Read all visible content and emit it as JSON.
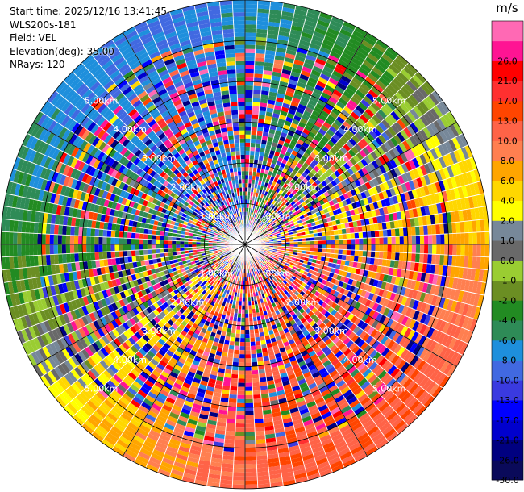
{
  "header": {
    "start_time": "Start time: 2025/12/16 13:41:45",
    "device": "WLS200s-181",
    "field": "Field: VEL",
    "elevation": "Elevation(deg): 35.00",
    "nrays": "NRays: 120"
  },
  "chart_data": {
    "type": "heatmap",
    "projection": "polar-ppi",
    "field": "VEL",
    "n_rays": 120,
    "elevation_deg": 35.0,
    "range_rings_km": [
      1.0,
      2.0,
      3.0,
      4.0,
      5.0
    ],
    "range_ring_labels": [
      "1.00km",
      "2.00km",
      "3.00km",
      "4.00km",
      "5.00km"
    ],
    "max_range_km": 6.0,
    "radial_spokes_deg": [
      0,
      30,
      60,
      90,
      120,
      150,
      180,
      210,
      240,
      270,
      300,
      330
    ],
    "colorbar": {
      "unit": "m/s",
      "position": "right",
      "levels": [
        -30.0,
        -26.0,
        -21.0,
        -17.0,
        -13.0,
        -10.0,
        -8.0,
        -6.0,
        -4.0,
        -2.0,
        -1.0,
        0.0,
        1.0,
        2.0,
        4.0,
        6.0,
        8.0,
        10.0,
        13.0,
        17.0,
        21.0,
        26.0
      ],
      "tick_labels": [
        "-30.0",
        "-26.0",
        "-21.0",
        "-17.0",
        "-13.0",
        "-10.0",
        "-8.0",
        "-6.0",
        "-4.0",
        "-2.0",
        "-1.0",
        "0.0",
        "1.0",
        "2.0",
        "4.0",
        "6.0",
        "8.0",
        "10.0",
        "13.0",
        "17.0",
        "21.0",
        "26.0"
      ],
      "colors": [
        "#0a0a5a",
        "#000080",
        "#0000cd",
        "#0000ff",
        "#3a3ae0",
        "#4169e1",
        "#1e8fdc",
        "#2e8b57",
        "#228b22",
        "#6b8e23",
        "#9acd32",
        "#696969",
        "#778899",
        "#ffff00",
        "#ffd700",
        "#ffa500",
        "#ff7f50",
        "#ff6347",
        "#ff4500",
        "#ff3030",
        "#ff0000",
        "#ff1493",
        "#ff69b4"
      ]
    }
  }
}
